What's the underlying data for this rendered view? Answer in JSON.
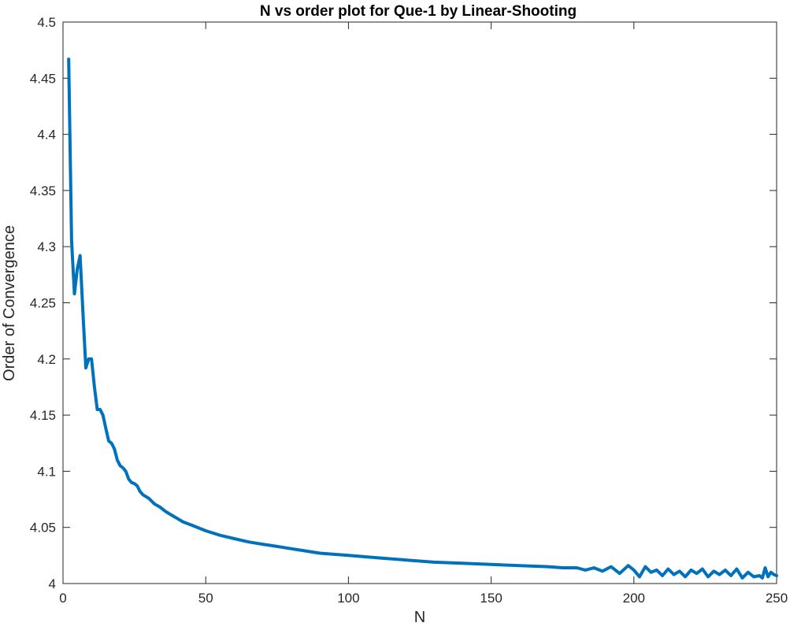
{
  "chart_data": {
    "type": "line",
    "title": "N vs order plot for Que-1 by Linear-Shooting",
    "xlabel": "N",
    "ylabel": "Order of Convergence",
    "xlim": [
      0,
      250
    ],
    "ylim": [
      4,
      4.5
    ],
    "x_ticks": [
      "0",
      "50",
      "100",
      "150",
      "200",
      "250"
    ],
    "y_ticks": [
      "4",
      "4.05",
      "4.1",
      "4.15",
      "4.2",
      "4.25",
      "4.3",
      "4.35",
      "4.4",
      "4.45",
      "4.5"
    ],
    "grid": false,
    "box": true,
    "colors": {
      "line": "#0072BD",
      "axis": "#262626"
    },
    "series": [
      {
        "x": [
          2,
          3,
          4,
          5,
          6,
          7,
          8,
          9,
          10,
          11,
          12,
          13,
          14,
          15,
          16,
          17,
          18,
          19,
          20,
          21,
          22,
          23,
          24,
          25,
          26,
          27,
          28,
          30,
          32,
          34,
          36,
          38,
          40,
          42,
          45,
          48,
          50,
          55,
          60,
          65,
          70,
          75,
          80,
          85,
          90,
          95,
          100,
          110,
          120,
          130,
          140,
          150,
          160,
          170,
          175,
          180,
          183,
          186,
          189,
          192,
          195,
          198,
          200,
          202,
          204,
          206,
          208,
          210,
          212,
          214,
          216,
          218,
          220,
          222,
          224,
          226,
          228,
          230,
          232,
          234,
          236,
          238,
          240,
          242,
          244,
          245,
          246,
          247,
          248,
          249,
          250
        ],
        "values": [
          4.467,
          4.305,
          4.258,
          4.28,
          4.292,
          4.24,
          4.192,
          4.2,
          4.2,
          4.175,
          4.155,
          4.155,
          4.15,
          4.138,
          4.127,
          4.125,
          4.12,
          4.11,
          4.105,
          4.103,
          4.1,
          4.093,
          4.09,
          4.089,
          4.087,
          4.082,
          4.079,
          4.076,
          4.071,
          4.068,
          4.064,
          4.061,
          4.058,
          4.055,
          4.052,
          4.049,
          4.047,
          4.043,
          4.04,
          4.037,
          4.035,
          4.033,
          4.031,
          4.029,
          4.027,
          4.026,
          4.025,
          4.023,
          4.021,
          4.019,
          4.018,
          4.017,
          4.016,
          4.015,
          4.014,
          4.014,
          4.012,
          4.014,
          4.011,
          4.015,
          4.009,
          4.016,
          4.012,
          4.006,
          4.015,
          4.01,
          4.012,
          4.007,
          4.013,
          4.008,
          4.011,
          4.006,
          4.012,
          4.009,
          4.013,
          4.006,
          4.011,
          4.008,
          4.012,
          4.007,
          4.013,
          4.005,
          4.01,
          4.006,
          4.007,
          4.005,
          4.014,
          4.006,
          4.01,
          4.008,
          4.007
        ]
      }
    ]
  }
}
